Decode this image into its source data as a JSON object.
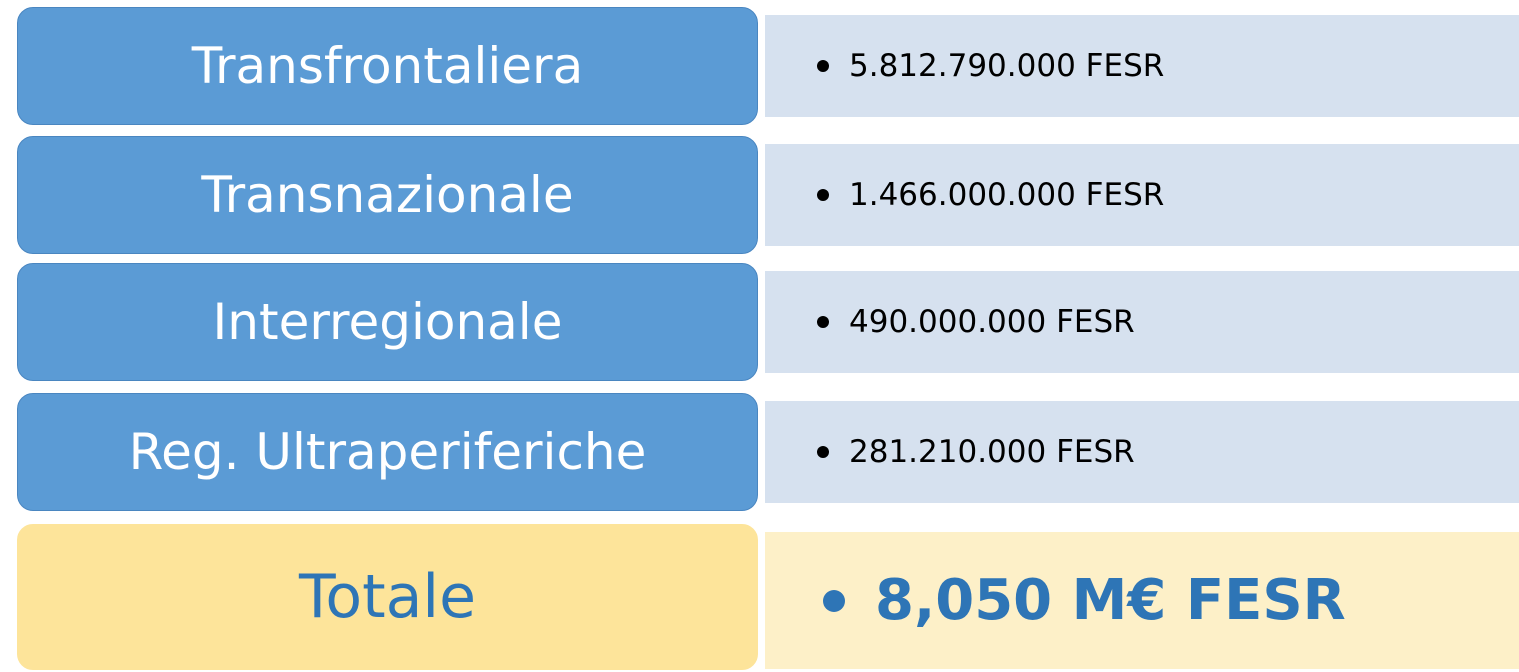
{
  "rows": [
    {
      "label": "Transfrontaliera",
      "value": "5.812.790.000 FESR"
    },
    {
      "label": "Transnazionale",
      "value": "1.466.000.000 FESR"
    },
    {
      "label": "Interregionale",
      "value": "490.000.000 FESR"
    },
    {
      "label": "Reg. Ultraperiferiche",
      "value": "281.210.000 FESR"
    }
  ],
  "total": {
    "label": "Totale",
    "value": "8,050 M€ FESR"
  }
}
